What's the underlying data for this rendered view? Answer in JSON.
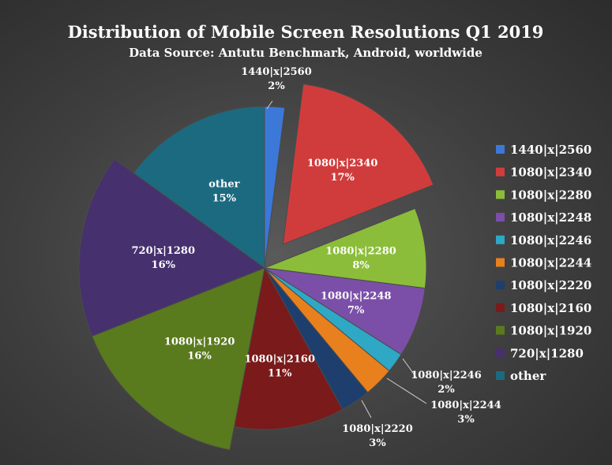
{
  "chart_data": {
    "type": "pie",
    "title": "Distribution of Mobile Screen Resolutions Q1 2019",
    "subtitle": "Data Source: Antutu Benchmark, Android, worldwide",
    "legend_position": "right",
    "exploded": true,
    "slices": [
      {
        "label": "1440|x|2560",
        "value": 2,
        "pct_label": "2%",
        "color": "#3c78d8"
      },
      {
        "label": "1080|x|2340",
        "value": 17,
        "pct_label": "17%",
        "color": "#d03c3c"
      },
      {
        "label": "1080|x|2280",
        "value": 8,
        "pct_label": "8%",
        "color": "#8cbd3a"
      },
      {
        "label": "1080|x|2248",
        "value": 7,
        "pct_label": "7%",
        "color": "#7b4fa8"
      },
      {
        "label": "1080|x|2246",
        "value": 2,
        "pct_label": "2%",
        "color": "#2ea8c4"
      },
      {
        "label": "1080|x|2244",
        "value": 3,
        "pct_label": "3%",
        "color": "#e8801e"
      },
      {
        "label": "1080|x|2220",
        "value": 3,
        "pct_label": "3%",
        "color": "#1e3f6e"
      },
      {
        "label": "1080|x|2160",
        "value": 11,
        "pct_label": "11%",
        "color": "#7a1a1a"
      },
      {
        "label": "1080|x|1920",
        "value": 16,
        "pct_label": "16%",
        "color": "#5a7a1e"
      },
      {
        "label": "720|x|1280",
        "value": 16,
        "pct_label": "16%",
        "color": "#46306e"
      },
      {
        "label": "other",
        "value": 15,
        "pct_label": "15%",
        "color": "#1c6a80"
      }
    ]
  }
}
